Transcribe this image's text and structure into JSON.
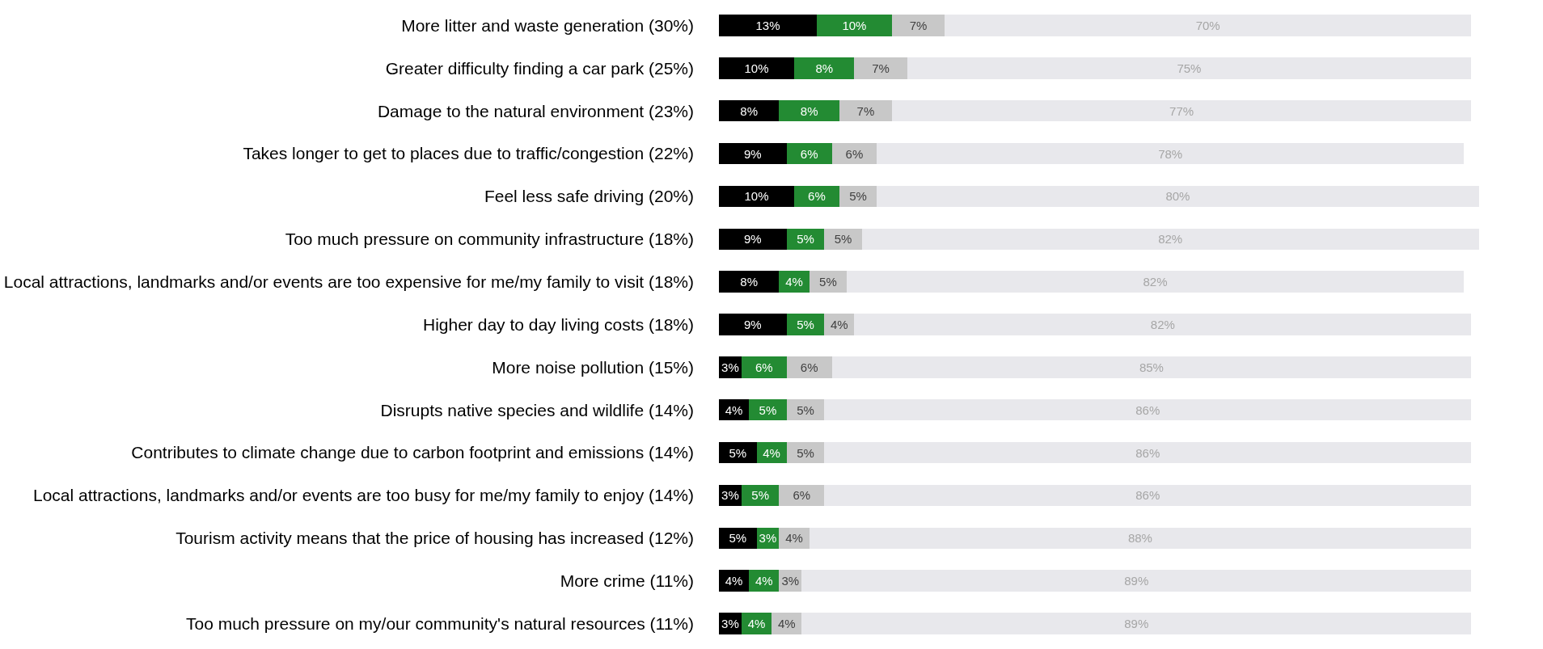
{
  "chart_data": {
    "type": "bar",
    "orientation": "horizontal",
    "stacked": true,
    "data_labels": true,
    "tick_labels": "y",
    "categories": [
      "More litter and waste generation (30%)",
      "Greater difficulty finding a car park (25%)",
      "Damage to the natural environment (23%)",
      "Takes longer to get to places due to traffic/congestion (22%)",
      "Feel less safe driving (20%)",
      "Too much pressure on community infrastructure (18%)",
      "Local attractions, landmarks and/or events are too expensive for me/my family to visit (18%)",
      "Higher day to day living costs (18%)",
      "More noise pollution (15%)",
      "Disrupts native species and wildlife (14%)",
      "Contributes to climate change due to carbon footprint and emissions (14%)",
      "Local attractions, landmarks and/or events are too busy for me/my family to enjoy (14%)",
      "Tourism activity means that the price of housing has increased (12%)",
      "More crime (11%)",
      "Too much pressure on my/our community's natural resources (11%)"
    ],
    "series": [
      {
        "color": "#000000",
        "values": [
          13,
          10,
          8,
          9,
          10,
          9,
          8,
          9,
          3,
          4,
          5,
          3,
          5,
          4,
          3
        ],
        "value_labels": [
          "13%",
          "10%",
          "8%",
          "9%",
          "10%",
          "9%",
          "8%",
          "9%",
          "3%",
          "4%",
          "5%",
          "3%",
          "5%",
          "4%",
          "3%"
        ]
      },
      {
        "color": "#238b33",
        "values": [
          10,
          8,
          8,
          6,
          6,
          5,
          4,
          5,
          6,
          5,
          4,
          5,
          3,
          4,
          4
        ],
        "value_labels": [
          "10%",
          "8%",
          "8%",
          "6%",
          "6%",
          "5%",
          "4%",
          "5%",
          "6%",
          "5%",
          "4%",
          "5%",
          "3%",
          "4%",
          "4%"
        ]
      },
      {
        "color": "#c8c8c8",
        "values": [
          7,
          7,
          7,
          6,
          5,
          5,
          5,
          4,
          6,
          5,
          5,
          6,
          4,
          3,
          4
        ],
        "value_labels": [
          "7%",
          "7%",
          "7%",
          "6%",
          "5%",
          "5%",
          "5%",
          "4%",
          "6%",
          "5%",
          "5%",
          "6%",
          "4%",
          "3%",
          "4%"
        ]
      },
      {
        "color": "#e8e8ec",
        "values": [
          70,
          75,
          77,
          78,
          80,
          82,
          82,
          82,
          85,
          86,
          86,
          86,
          88,
          89,
          89
        ],
        "value_labels": [
          "70%",
          "75%",
          "77%",
          "78%",
          "80%",
          "82%",
          "82%",
          "82%",
          "85%",
          "86%",
          "86%",
          "86%",
          "88%",
          "89%",
          "89%"
        ]
      }
    ]
  }
}
